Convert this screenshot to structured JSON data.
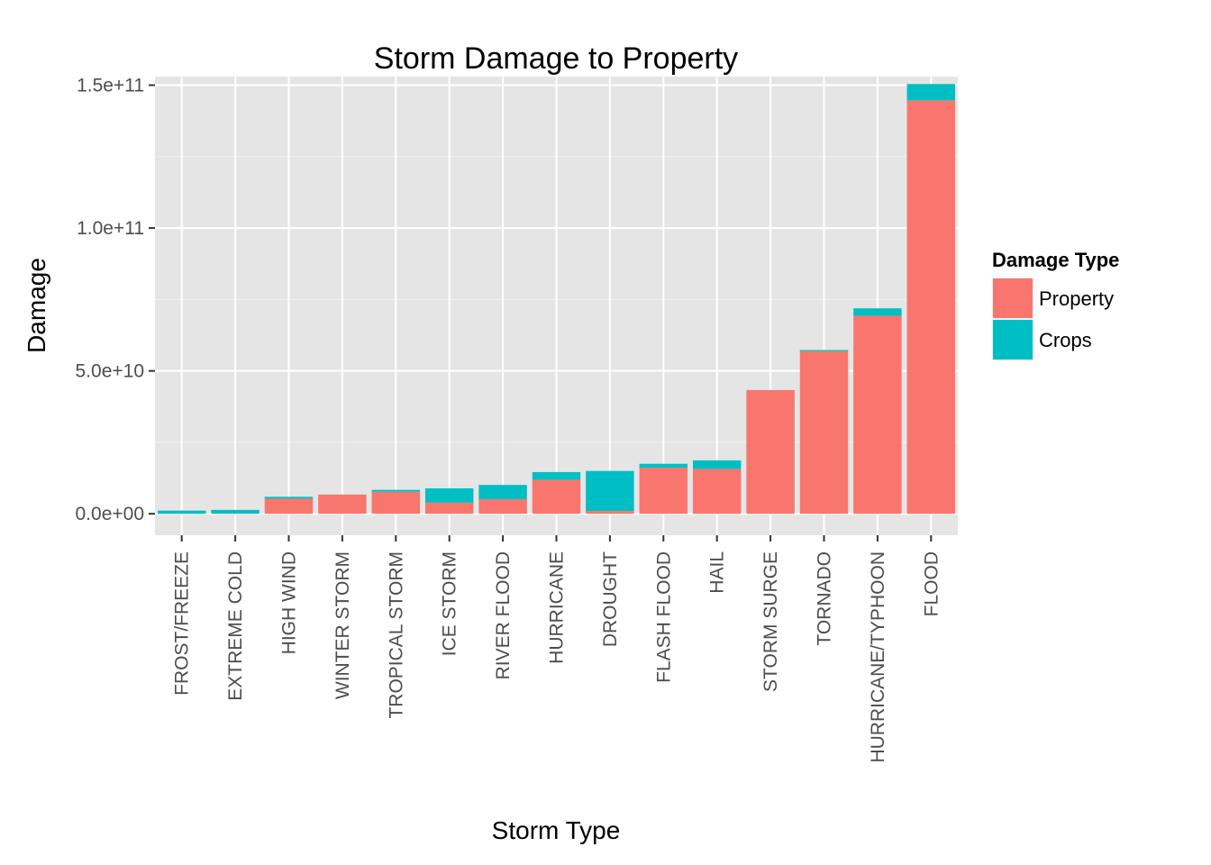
{
  "chart_data": {
    "type": "bar",
    "stacked": true,
    "title": "Storm Damage to Property",
    "xlabel": "Storm Type",
    "ylabel": "Damage",
    "ylim": [
      -7500000000.0,
      153000000000.0
    ],
    "yticks": [
      0,
      50000000000.0,
      100000000000.0,
      150000000000.0
    ],
    "ytick_labels": [
      "0.0e+00",
      "5.0e+10",
      "1.0e+11",
      "1.5e+11"
    ],
    "grid": true,
    "legend": {
      "title": "Damage Type",
      "position": "right"
    },
    "categories": [
      "FROST/FREEZE",
      "EXTREME COLD",
      "HIGH WIND",
      "WINTER STORM",
      "TROPICAL STORM",
      "ICE STORM",
      "RIVER FLOOD",
      "HURRICANE",
      "DROUGHT",
      "FLASH FLOOD",
      "HAIL",
      "STORM SURGE",
      "TORNADO",
      "HURRICANE/TYPHOON",
      "FLOOD"
    ],
    "series": [
      {
        "name": "Property",
        "color": "#F8766D",
        "values": [
          11000000.0,
          68000000.0,
          5300000000.0,
          6700000000.0,
          7700000000.0,
          3900000000.0,
          5100000000.0,
          11900000000.0,
          1000000000.0,
          16100000000.0,
          15700000000.0,
          43300000000.0,
          56900000000.0,
          69300000000.0,
          144700000000.0
        ]
      },
      {
        "name": "Crops",
        "color": "#00BFC4",
        "values": [
          1100000000.0,
          1290000000.0,
          640000000.0,
          27000000.0,
          680000000.0,
          5000000000.0,
          5000000000.0,
          2700000000.0,
          14000000000.0,
          1400000000.0,
          3000000000.0,
          5000.0,
          410000000.0,
          2600000000.0,
          5700000000.0
        ]
      }
    ]
  }
}
